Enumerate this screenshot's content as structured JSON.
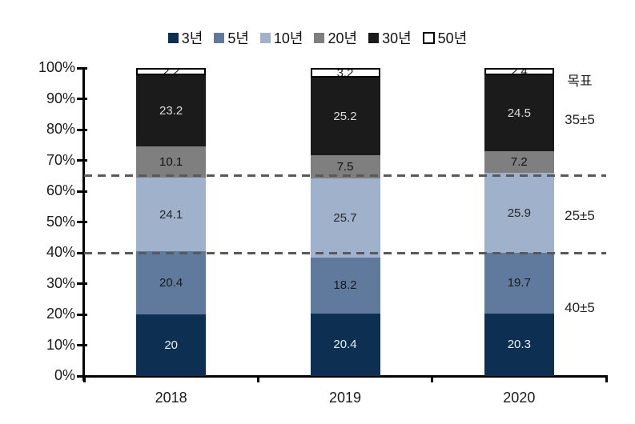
{
  "chart_data": {
    "type": "bar",
    "stacked": true,
    "title": "",
    "categories": [
      "2018",
      "2019",
      "2020"
    ],
    "series": [
      {
        "name": "3년",
        "color": "#0D3052",
        "label_color": "#E9EEF4",
        "values": [
          20,
          20.4,
          20.3
        ]
      },
      {
        "name": "5년",
        "color": "#607A9E",
        "label_color": "#1A1A1A",
        "values": [
          20.4,
          18.2,
          19.7
        ]
      },
      {
        "name": "10년",
        "color": "#A0B1CB",
        "label_color": "#262626",
        "values": [
          24.1,
          25.7,
          25.9
        ]
      },
      {
        "name": "20년",
        "color": "#7F7F7F",
        "label_color": "#111111",
        "values": [
          10.1,
          7.5,
          7.2
        ]
      },
      {
        "name": "30년",
        "color": "#1B1B1B",
        "label_color": "#DCDCDC",
        "values": [
          23.2,
          25.2,
          24.5
        ]
      },
      {
        "name": "50년",
        "color": "#FFFFFF",
        "border_color": "#000000",
        "label_color": "#1A1A1A",
        "values": [
          2.2,
          3.2,
          2.4
        ]
      }
    ],
    "ylim": [
      0,
      100
    ],
    "ytick_step": 10,
    "ytick_suffix": "%",
    "grid": false,
    "legend_position": "top",
    "guide_lines_percent": [
      40,
      65
    ],
    "guide_color": "#595959",
    "annotations": [
      {
        "text": "목표",
        "at_percent": 97
      },
      {
        "text": "35±5",
        "at_percent": 83
      },
      {
        "text": "25±5",
        "at_percent": 52
      },
      {
        "text": "40±5",
        "at_percent": 22
      }
    ]
  },
  "colors": {
    "background": "#FFFFFF",
    "axis": "#000000",
    "bar_label_light": "#E9EEF4",
    "bar_label_dark": "#1A1A1A"
  }
}
